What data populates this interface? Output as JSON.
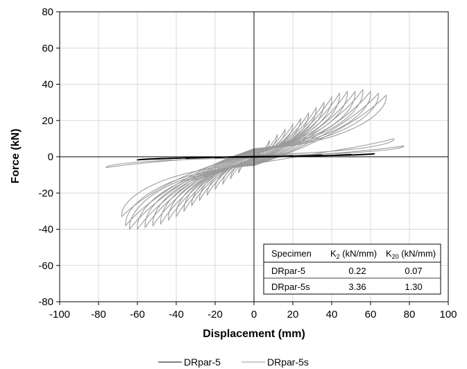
{
  "chart_data": {
    "type": "line",
    "xlabel": "Displacement (mm)",
    "ylabel": "Force (kN)",
    "xlim": [
      -100,
      100
    ],
    "ylim": [
      -80,
      80
    ],
    "x_ticks": [
      -100,
      -80,
      -60,
      -40,
      -20,
      0,
      20,
      40,
      60,
      80,
      100
    ],
    "y_ticks": [
      -80,
      -60,
      -40,
      -20,
      0,
      20,
      40,
      60,
      80
    ],
    "grid": true,
    "legend_position": "bottom-center",
    "series": [
      {
        "name": "DRpar-5",
        "color": "#000000",
        "cycles": [
          {
            "amp_pos": 20,
            "f_pos": 0.6,
            "amp_neg": -20,
            "f_neg": -0.6
          },
          {
            "amp_pos": 35,
            "f_pos": 0.9,
            "amp_neg": -35,
            "f_neg": -0.9
          },
          {
            "amp_pos": 50,
            "f_pos": 1.3,
            "amp_neg": -50,
            "f_neg": -1.3
          },
          {
            "amp_pos": 62,
            "f_pos": 1.7,
            "amp_neg": -60,
            "f_neg": -1.8
          }
        ]
      },
      {
        "name": "DRpar-5s",
        "color": "#9a9a9a",
        "cycles": [
          {
            "amp_pos": 4,
            "f_pos": 5,
            "amp_neg": -4,
            "f_neg": -5
          },
          {
            "amp_pos": 8,
            "f_pos": 9,
            "amp_neg": -8,
            "f_neg": -9
          },
          {
            "amp_pos": 12,
            "f_pos": 12,
            "amp_neg": -12,
            "f_neg": -12
          },
          {
            "amp_pos": 16,
            "f_pos": 15,
            "amp_neg": -16,
            "f_neg": -15
          },
          {
            "amp_pos": 20,
            "f_pos": 18,
            "amp_neg": -20,
            "f_neg": -18
          },
          {
            "amp_pos": 24,
            "f_pos": 21,
            "amp_neg": -24,
            "f_neg": -21
          },
          {
            "amp_pos": 28,
            "f_pos": 24,
            "amp_neg": -28,
            "f_neg": -24
          },
          {
            "amp_pos": 32,
            "f_pos": 27,
            "amp_neg": -32,
            "f_neg": -27
          },
          {
            "amp_pos": 36,
            "f_pos": 30,
            "amp_neg": -36,
            "f_neg": -30
          },
          {
            "amp_pos": 40,
            "f_pos": 33,
            "amp_neg": -40,
            "f_neg": -33
          },
          {
            "amp_pos": 44,
            "f_pos": 35,
            "amp_neg": -44,
            "f_neg": -35
          },
          {
            "amp_pos": 48,
            "f_pos": 36,
            "amp_neg": -48,
            "f_neg": -37
          },
          {
            "amp_pos": 52,
            "f_pos": 36,
            "amp_neg": -52,
            "f_neg": -38
          },
          {
            "amp_pos": 56,
            "f_pos": 37,
            "amp_neg": -56,
            "f_neg": -39
          },
          {
            "amp_pos": 60,
            "f_pos": 36,
            "amp_neg": -60,
            "f_neg": -40
          },
          {
            "amp_pos": 64,
            "f_pos": 35,
            "amp_neg": -64,
            "f_neg": -40
          },
          {
            "amp_pos": 68,
            "f_pos": 34,
            "amp_neg": -66,
            "f_neg": -38
          },
          {
            "amp_pos": 72,
            "f_pos": 10,
            "amp_neg": -68,
            "f_neg": -33
          },
          {
            "amp_pos": 77,
            "f_pos": 6,
            "amp_neg": -76,
            "f_neg": -6
          }
        ]
      }
    ],
    "table": {
      "headers": [
        "Specimen",
        "K2 (kN/mm)",
        "K20 (kN/mm)"
      ],
      "rows": [
        [
          "DRpar-5",
          "0.22",
          "0.07"
        ],
        [
          "DRpar-5s",
          "3.36",
          "1.30"
        ]
      ]
    }
  }
}
